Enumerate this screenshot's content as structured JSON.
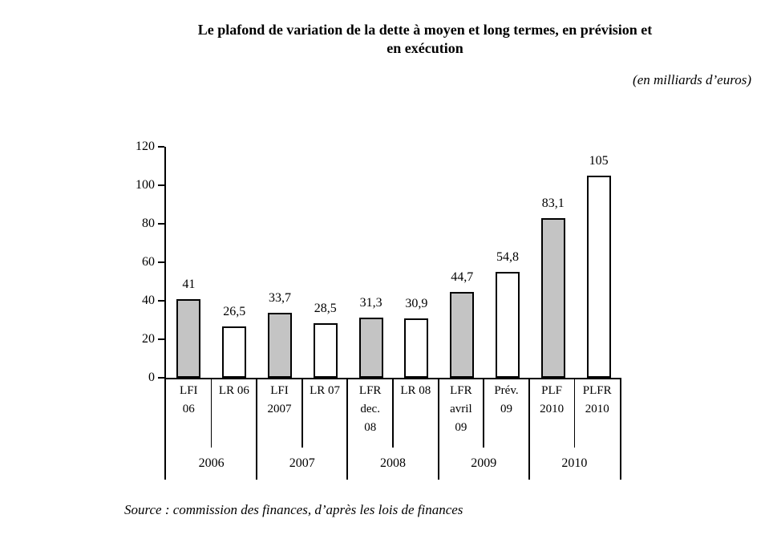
{
  "title_lines": [
    "Le plafond de variation de la dette à moyen et long termes, en prévision et",
    "en exécution"
  ],
  "subtitle": "(en milliards d’euros)",
  "source": "Source : commission des finances, d’après les lois de finances",
  "colors": {
    "bar_gray": "#c4c4c4",
    "bar_white": "#ffffff",
    "bar_border": "#000000",
    "axis": "#000000"
  },
  "chart_data": {
    "type": "bar",
    "title": "Le plafond de variation de la dette à moyen et long termes, en prévision et en exécution",
    "unit": "(en milliards d’euros)",
    "categories": [
      "LFI\n06",
      "LR 06",
      "LFI\n2007",
      "LR 07",
      "LFR\ndec.\n08",
      "LR 08",
      "LFR\navril\n09",
      "Prév.\n09",
      "PLF\n2010",
      "PLFR\n2010"
    ],
    "values": [
      41,
      26.5,
      33.7,
      28.5,
      31.3,
      30.9,
      44.7,
      54.8,
      83.1,
      105
    ],
    "value_labels": [
      "41",
      "26,5",
      "33,7",
      "28,5",
      "31,3",
      "30,9",
      "44,7",
      "54,8",
      "83,1",
      "105"
    ],
    "bar_fills": [
      "gray",
      "white",
      "gray",
      "white",
      "gray",
      "white",
      "gray",
      "white",
      "gray",
      "white"
    ],
    "year_groups": [
      "2006",
      "2007",
      "2008",
      "2009",
      "2010"
    ],
    "bars_per_group": 2,
    "xlabel": "",
    "ylabel": "",
    "ylim": [
      0,
      120
    ],
    "yticks": [
      0,
      20,
      40,
      60,
      80,
      100,
      120
    ],
    "grid": false,
    "legend": null
  }
}
